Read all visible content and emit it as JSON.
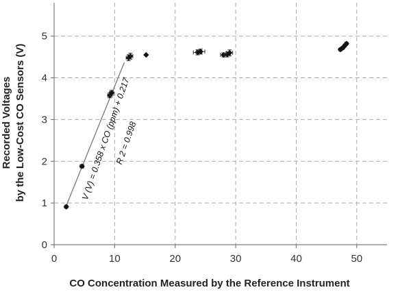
{
  "chart_data": {
    "type": "scatter",
    "title": "",
    "xlabel": "CO Concentration Measured by the Reference Instrument",
    "ylabel_lines": [
      "Recorded Voltages",
      "by the Low-Cost CO Sensors (V)"
    ],
    "xlim": [
      0,
      55
    ],
    "ylim": [
      0,
      5.8
    ],
    "x_ticks": [
      0,
      10,
      20,
      30,
      40,
      50
    ],
    "y_ticks": [
      0,
      1,
      2,
      3,
      4,
      5
    ],
    "grid": true,
    "legend": "none",
    "marker_color": "#111111",
    "fit_line_color": "#7f7f7f",
    "points": [
      {
        "x": 2.0,
        "y": 0.91,
        "xerr": 0.2,
        "yerr": 0.03
      },
      {
        "x": 4.6,
        "y": 1.88,
        "xerr": 0.3,
        "yerr": 0.04
      },
      {
        "x": 9.2,
        "y": 3.58,
        "xerr": 0.35,
        "yerr": 0.06
      },
      {
        "x": 9.5,
        "y": 3.64,
        "xerr": 0.35,
        "yerr": 0.06
      },
      {
        "x": 12.3,
        "y": 4.48,
        "xerr": 0.4,
        "yerr": 0.07
      },
      {
        "x": 12.6,
        "y": 4.52,
        "xerr": 0.4,
        "yerr": 0.07
      },
      {
        "x": 15.2,
        "y": 4.55,
        "xerr": 0.0,
        "yerr": 0.0
      },
      {
        "x": 23.7,
        "y": 4.61,
        "xerr": 0.7,
        "yerr": 0.06
      },
      {
        "x": 24.2,
        "y": 4.63,
        "xerr": 0.7,
        "yerr": 0.06
      },
      {
        "x": 28.0,
        "y": 4.55,
        "xerr": 0.5,
        "yerr": 0.05
      },
      {
        "x": 28.6,
        "y": 4.56,
        "xerr": 0.5,
        "yerr": 0.06
      },
      {
        "x": 29.0,
        "y": 4.6,
        "xerr": 0.5,
        "yerr": 0.07
      },
      {
        "x": 47.3,
        "y": 4.68,
        "xerr": 0.2,
        "yerr": 0.03
      },
      {
        "x": 47.7,
        "y": 4.72,
        "xerr": 0.2,
        "yerr": 0.03
      },
      {
        "x": 48.0,
        "y": 4.77,
        "xerr": 0.2,
        "yerr": 0.03
      },
      {
        "x": 48.3,
        "y": 4.82,
        "xerr": 0.2,
        "yerr": 0.03
      }
    ],
    "fit_line": {
      "x_start": 2.0,
      "x_end": 11.6,
      "slope": 0.358,
      "intercept": 0.217
    },
    "annotations": {
      "equation": "V (V) = 0.358 x CO (ppm) + 0.217",
      "r_squared": "R 2 = 0.998"
    }
  }
}
